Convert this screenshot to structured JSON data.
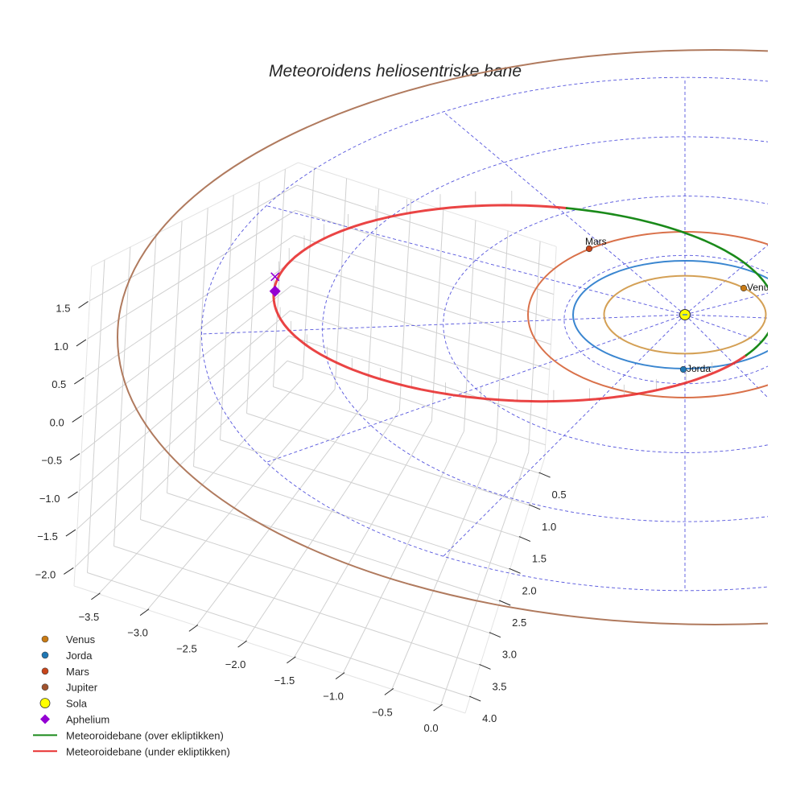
{
  "chart_data": {
    "type": "line3d",
    "title": "Meteoroidens heliosentriske bane",
    "xlabel": "",
    "ylabel": "",
    "zlabel": "",
    "x_ticks": [
      "−3.5",
      "−3.0",
      "−2.5",
      "−2.0",
      "−1.5",
      "−1.0",
      "−0.5",
      "0.0"
    ],
    "x_tick_values": [
      -3.5,
      -3.0,
      -2.5,
      -2.0,
      -1.5,
      -1.0,
      -0.5,
      0.0
    ],
    "y_ticks": [
      "0.5",
      "1.0",
      "1.5",
      "2.0",
      "2.5",
      "3.0",
      "3.5",
      "4.0"
    ],
    "y_tick_values": [
      0.5,
      1.0,
      1.5,
      2.0,
      2.5,
      3.0,
      3.5,
      4.0
    ],
    "z_ticks": [
      "1.5",
      "1.0",
      "0.5",
      "0.0",
      "−0.5",
      "−1.0",
      "−1.5",
      "−2.0"
    ],
    "z_tick_values": [
      1.5,
      1.0,
      0.5,
      0.0,
      -0.5,
      -1.0,
      -1.5,
      -2.0
    ],
    "grid": true,
    "legend_position": "bottom-left",
    "orbits": [
      {
        "name": "Venus",
        "radius_au": 0.723,
        "color": "#d4a055"
      },
      {
        "name": "Jorda",
        "radius_au": 1.0,
        "color": "#3a86d0"
      },
      {
        "name": "Mars",
        "radius_au": 1.524,
        "color": "#d9714a"
      },
      {
        "name": "Jupiter",
        "radius_au": 5.2,
        "color": "#b07a5e"
      }
    ],
    "reference_rings_au": [
      1,
      2,
      3,
      4
    ],
    "reference_spokes_deg": [
      0,
      30,
      60,
      90,
      120,
      150,
      180,
      210,
      240,
      270,
      300,
      330
    ],
    "planets": [
      {
        "name": "Mars",
        "label": "Mars",
        "angle_deg": 118,
        "radius_au": 1.524,
        "color": "#c8451a"
      },
      {
        "name": "Venus",
        "label": "Venus",
        "angle_deg": 20,
        "radius_au": 0.723,
        "color": "#c87a14"
      },
      {
        "name": "Jorda",
        "label": "Jorda",
        "angle_deg": 270,
        "radius_au": 1.0,
        "color": "#1f77b4"
      }
    ],
    "meteoroid_orbit": {
      "perihelion_au": 0.8,
      "aphelion_au": 3.7,
      "over_color": "#1a8a1a",
      "under_color": "#e83030"
    },
    "legend": [
      {
        "label": "Venus",
        "marker": "circle",
        "color": "#c87a14"
      },
      {
        "label": "Jorda",
        "marker": "circle",
        "color": "#1f77b4"
      },
      {
        "label": "Mars",
        "marker": "circle",
        "color": "#c8451a"
      },
      {
        "label": "Jupiter",
        "marker": "circle",
        "color": "#a0522d"
      },
      {
        "label": "Sola",
        "marker": "big-circle",
        "color": "#ffff00"
      },
      {
        "label": "Aphelium",
        "marker": "diamond",
        "color": "#9400d3"
      },
      {
        "label": "Meteoroidebane (over ekliptikken)",
        "marker": "line",
        "color": "#1a8a1a"
      },
      {
        "label": "Meteoroidebane (under ekliptikken)",
        "marker": "line",
        "color": "#e83030"
      }
    ]
  }
}
